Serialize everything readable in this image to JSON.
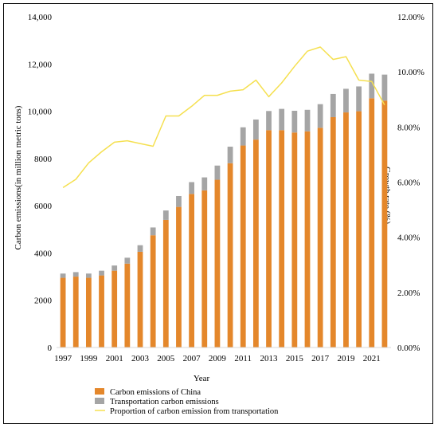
{
  "chart_data": {
    "type": "bar+line",
    "title": "",
    "xlabel": "Year",
    "ylabel_left": "Carbon emissions(in million metric tons)",
    "ylabel_right": "Growth rate (%)",
    "ylim_left": [
      0,
      14000
    ],
    "ylim_right": [
      0,
      12
    ],
    "yticks_left": [
      "0",
      "2000",
      "4000",
      "6000",
      "8000",
      "10,000",
      "12,000",
      "14,000"
    ],
    "yticks_right": [
      "0.00%",
      "2.00%",
      "4.00%",
      "6.00%",
      "8.00%",
      "10.00%",
      "12.00%"
    ],
    "x": [
      1997,
      1998,
      1999,
      2000,
      2001,
      2002,
      2003,
      2004,
      2005,
      2006,
      2007,
      2008,
      2009,
      2010,
      2011,
      2012,
      2013,
      2014,
      2015,
      2016,
      2017,
      2018,
      2019,
      2020,
      2021,
      2022
    ],
    "xtick_labels": [
      "1997",
      "1999",
      "2001",
      "2003",
      "2005",
      "2007",
      "2009",
      "2011",
      "2013",
      "2015",
      "2017",
      "2019",
      "2021"
    ],
    "stacked": true,
    "series": [
      {
        "name": "Carbon emissions of China",
        "kind": "bar",
        "axis": "left",
        "color": "#e4872b",
        "values": [
          2950,
          3000,
          2950,
          3050,
          3250,
          3550,
          4050,
          4750,
          5400,
          5950,
          6500,
          6650,
          7100,
          7800,
          8550,
          8800,
          9200,
          9200,
          9100,
          9150,
          9300,
          9750,
          9950,
          10000,
          10550,
          10450
        ]
      },
      {
        "name": "Transportation carbon emissions",
        "kind": "bar",
        "axis": "left",
        "color": "#a5a5a5",
        "values": [
          180,
          190,
          180,
          200,
          220,
          250,
          280,
          330,
          400,
          460,
          500,
          550,
          600,
          700,
          770,
          850,
          810,
          900,
          920,
          910,
          1000,
          980,
          1000,
          1050,
          1040,
          1100
        ]
      },
      {
        "name": "Proportion of carbon emission from transportation",
        "kind": "line",
        "axis": "right",
        "color": "#f5e050",
        "values": [
          5.8,
          6.1,
          6.7,
          7.1,
          7.45,
          7.5,
          7.4,
          7.3,
          8.4,
          8.4,
          8.75,
          9.15,
          9.15,
          9.3,
          9.35,
          9.7,
          9.1,
          9.6,
          10.2,
          10.75,
          10.9,
          10.45,
          10.55,
          9.7,
          9.65,
          8.8
        ]
      }
    ],
    "grid": false,
    "legend_position": "bottom"
  }
}
